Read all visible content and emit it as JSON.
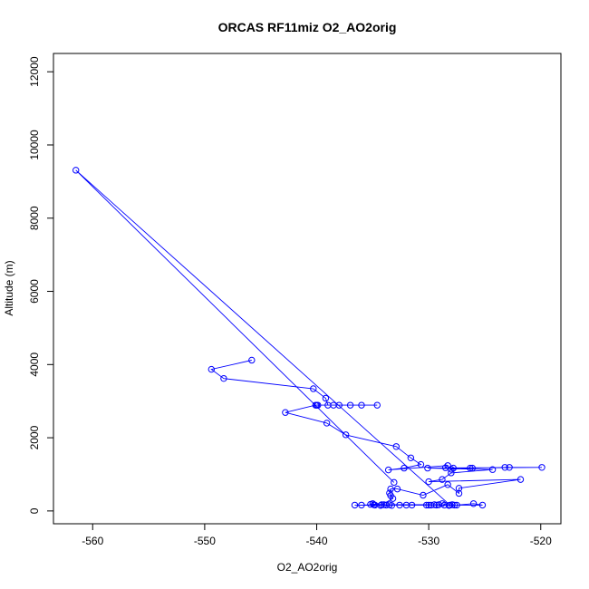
{
  "chart_data": {
    "type": "line",
    "title": "ORCAS RF11miz O2_AO2orig",
    "xlabel": "O2_AO2orig",
    "ylabel": "Altitude (m)",
    "xlim": [
      -563.5,
      -518.2
    ],
    "ylim": [
      -350,
      12500
    ],
    "xticks": [
      -560,
      -550,
      -540,
      -530,
      -520
    ],
    "yticks": [
      0,
      2000,
      4000,
      6000,
      8000,
      10000,
      12000
    ],
    "grid": false,
    "legend": "none",
    "series": [
      {
        "color": "#0000ff",
        "marker": "open-circle",
        "points": [
          [
            -545.8,
            4120
          ],
          [
            -549.4,
            3870
          ],
          [
            -548.3,
            3620
          ],
          [
            -540.3,
            3340
          ],
          [
            -539.2,
            3080
          ],
          [
            -539.0,
            2890
          ],
          [
            -540.0,
            2890
          ],
          [
            -539.9,
            2890
          ],
          [
            -538.5,
            2890
          ],
          [
            -538.0,
            2890
          ],
          [
            -537.0,
            2890
          ],
          [
            -536.0,
            2890
          ],
          [
            -534.6,
            2890
          ],
          [
            -540.1,
            2890
          ],
          [
            -542.8,
            2690
          ],
          [
            -539.1,
            2400
          ],
          [
            -537.4,
            2080
          ],
          [
            -532.9,
            1760
          ],
          [
            -531.6,
            1450
          ],
          [
            -530.7,
            1270
          ],
          [
            -532.2,
            1170
          ],
          [
            -533.6,
            1120
          ],
          [
            -528.3,
            1240
          ],
          [
            -528.5,
            1180
          ],
          [
            -527.8,
            1170
          ],
          [
            -528.0,
            1140
          ],
          [
            -526.3,
            1170
          ],
          [
            -526.1,
            1170
          ],
          [
            -523.2,
            1190
          ],
          [
            -522.8,
            1190
          ],
          [
            -519.9,
            1190
          ],
          [
            -530.1,
            1170
          ],
          [
            -524.3,
            1130
          ],
          [
            -528.0,
            1040
          ],
          [
            -528.8,
            860
          ],
          [
            -530.0,
            800
          ],
          [
            -521.8,
            860
          ],
          [
            -527.3,
            620
          ],
          [
            -527.3,
            480
          ],
          [
            -528.3,
            720
          ],
          [
            -530.5,
            430
          ],
          [
            -532.8,
            600
          ],
          [
            -533.4,
            600
          ],
          [
            -533.5,
            490
          ],
          [
            -533.4,
            420
          ],
          [
            -533.2,
            340
          ],
          [
            -534.2,
            170
          ],
          [
            -534.8,
            160
          ],
          [
            -535.0,
            200
          ],
          [
            -534.3,
            150
          ],
          [
            -534.0,
            170
          ],
          [
            -533.8,
            160
          ],
          [
            -531.5,
            160
          ],
          [
            -530.2,
            160
          ],
          [
            -529.5,
            170
          ],
          [
            -529.8,
            160
          ],
          [
            -529.3,
            160
          ],
          [
            -528.8,
            200
          ],
          [
            -528.2,
            150
          ],
          [
            -527.7,
            160
          ],
          [
            -527.5,
            160
          ],
          [
            -526.0,
            200
          ],
          [
            -525.2,
            160
          ],
          [
            -532.0,
            160
          ],
          [
            -532.6,
            160
          ],
          [
            -530.0,
            160
          ],
          [
            -529.1,
            170
          ],
          [
            -534.9,
            170
          ],
          [
            -536.0,
            160
          ],
          [
            -536.6,
            160
          ],
          [
            -533.3,
            150
          ],
          [
            -535.2,
            180
          ],
          [
            -533.5,
            170
          ],
          [
            -528.6,
            160
          ],
          [
            -527.9,
            170
          ],
          [
            -528.1,
            160
          ],
          [
            -561.5,
            9310
          ],
          [
            -533.1,
            780
          ]
        ]
      }
    ]
  }
}
